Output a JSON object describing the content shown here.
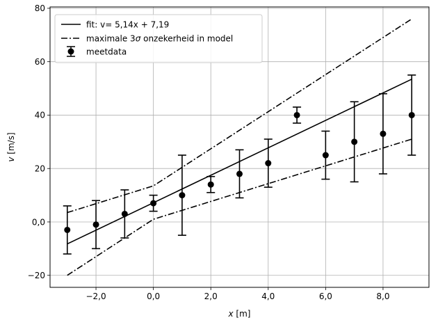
{
  "chart_data": {
    "type": "scatter",
    "xlim": [
      -3.6,
      9.6
    ],
    "ylim": [
      -24.5,
      80.5
    ],
    "x_ticks": [
      -2,
      0,
      2,
      4,
      6,
      8
    ],
    "x_tick_labels": [
      "−2,0",
      "0,0",
      "2,0",
      "4,0",
      "6,0",
      "8,0"
    ],
    "y_ticks": [
      -20,
      0,
      20,
      40,
      60,
      80
    ],
    "y_tick_labels": [
      "−20",
      "0,0",
      "20",
      "40",
      "60",
      "80"
    ],
    "xlabel_var": "x",
    "xlabel_unit": " [m]",
    "ylabel_var": "v",
    "ylabel_unit": " [m/s]",
    "grid": true,
    "legend_position": "top-left",
    "legend": {
      "fit": "fit: v= 5,14x +  7,19",
      "uncertainty_prefix": "maximale 3",
      "uncertainty_symbol": "σ",
      "uncertainty_suffix": " onzekerheid in model",
      "data": "meetdata"
    },
    "series": [
      {
        "name": "meetdata",
        "style": "errorbar-points",
        "x": [
          -3,
          -2,
          -1,
          0,
          1,
          2,
          3,
          4,
          5,
          6,
          7,
          8,
          9
        ],
        "y": [
          -3,
          -1,
          3,
          7,
          10,
          14,
          18,
          22,
          40,
          25,
          30,
          33,
          40
        ],
        "yerr": [
          9,
          9,
          9,
          3,
          15,
          3,
          9,
          9,
          3,
          9,
          15,
          15,
          15
        ]
      },
      {
        "name": "fit: v= 5,14x +  7,19",
        "style": "solid-line",
        "x": [
          -3,
          9
        ],
        "y": [
          -8.23,
          53.45
        ]
      },
      {
        "name": "maximale 3σ onzekerheid in model (boven)",
        "style": "dashdot-line",
        "x": [
          -3,
          0,
          9
        ],
        "y": [
          3.5,
          13.5,
          76
        ]
      },
      {
        "name": "maximale 3σ onzekerheid in model (onder)",
        "style": "dashdot-line",
        "x": [
          -3,
          0,
          9
        ],
        "y": [
          -20,
          1,
          31
        ]
      }
    ],
    "colors": {
      "data": "#000000",
      "grid": "#b0b0b0",
      "axes": "#000000",
      "legend_border": "#cccccc"
    }
  }
}
